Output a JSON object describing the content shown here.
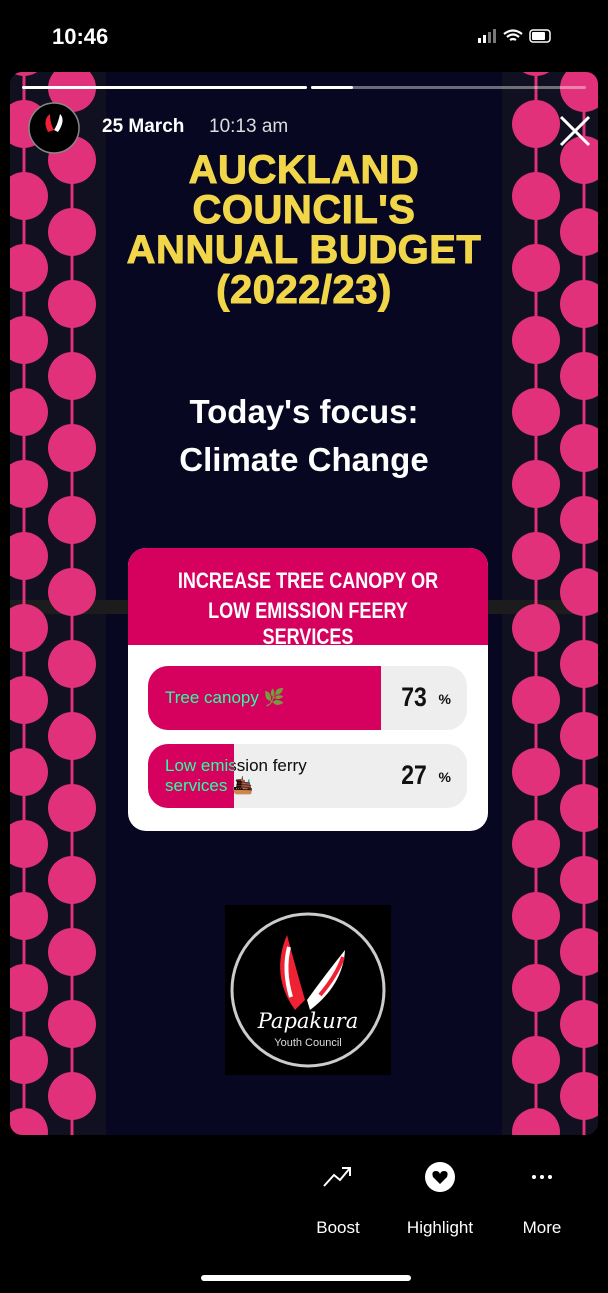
{
  "status_bar": {
    "time": "10:46"
  },
  "story": {
    "date": "25 March",
    "time": "10:13 am",
    "title_lines": [
      "AUCKLAND",
      "COUNCIL'S",
      "ANNUAL BUDGET",
      "(2022/23)"
    ],
    "focus_lines": [
      "Today's focus:",
      "Climate Change"
    ],
    "poll": {
      "question_lines": [
        "INCREASE TREE CANOPY OR",
        "LOW EMISSION FEERY SERVICES"
      ],
      "options": [
        {
          "label_lines": [
            "Tree canopy 🌿"
          ],
          "percent": 73,
          "unit": "%"
        },
        {
          "label_lines": [
            "Low emission ferry",
            "services 🛳️"
          ],
          "percent": 27,
          "unit": "%"
        }
      ]
    },
    "logo": {
      "name": "Papakura",
      "subtitle": "Youth Council"
    }
  },
  "actions": [
    {
      "label": "Boost"
    },
    {
      "label": "Highlight"
    },
    {
      "label": "More"
    }
  ]
}
